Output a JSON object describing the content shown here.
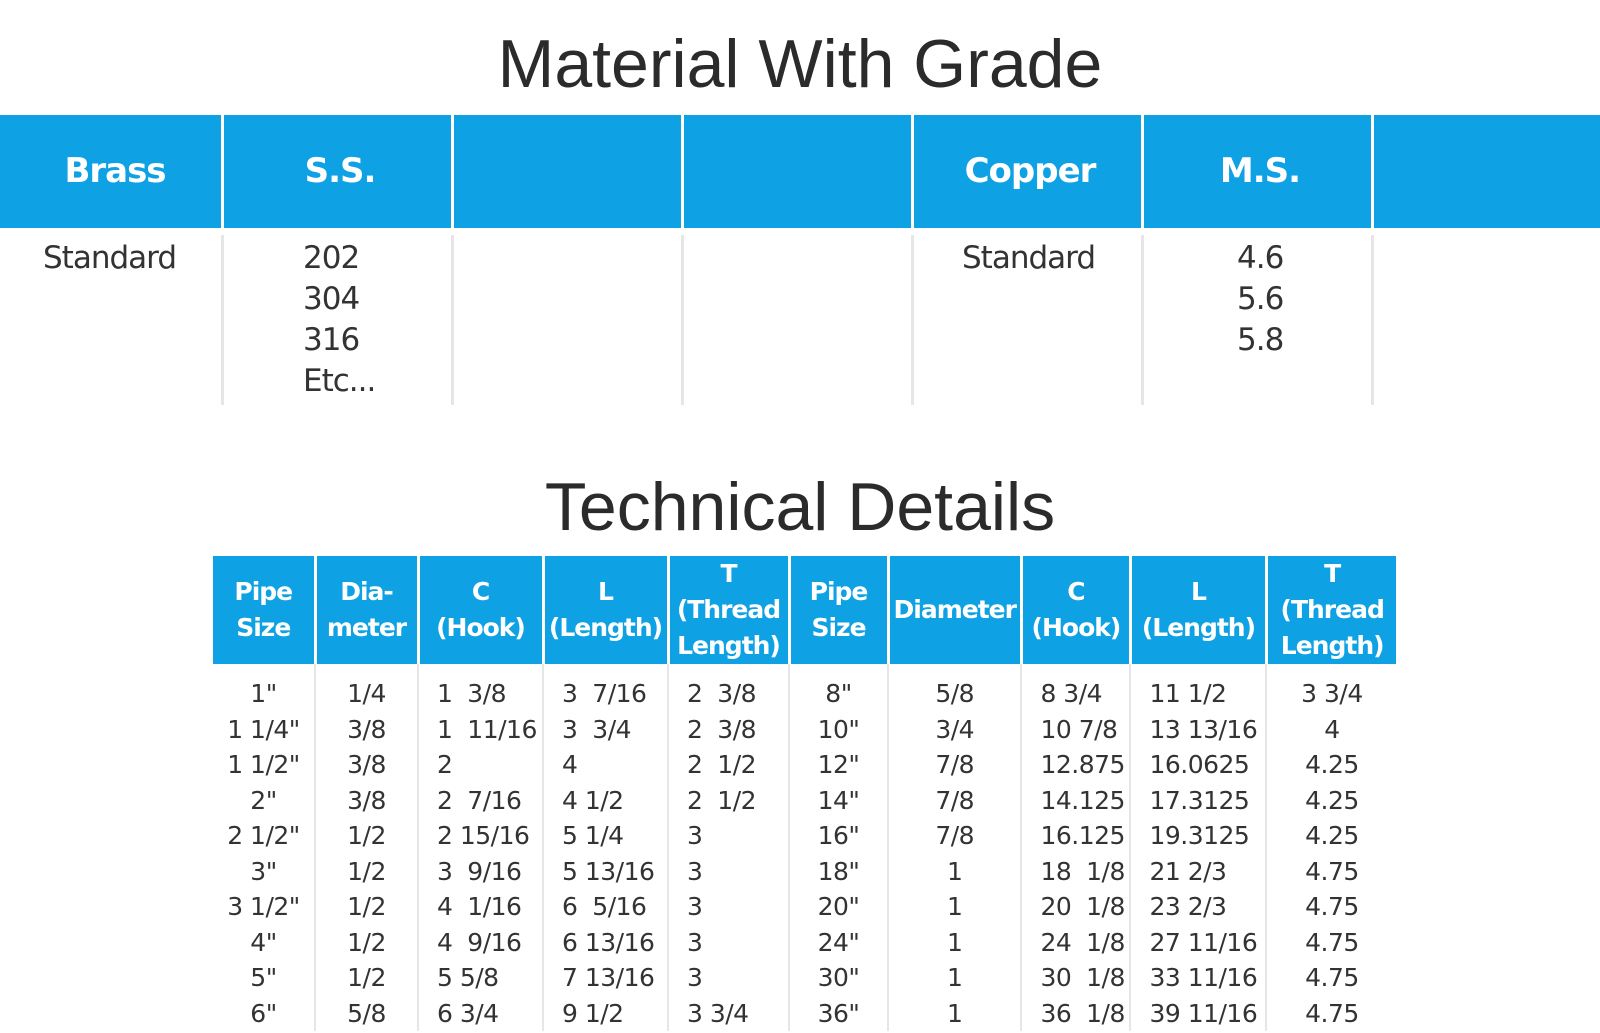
{
  "titles": {
    "material": "Material With Grade",
    "technical": "Technical Details"
  },
  "material_table": {
    "columns": [
      {
        "header": "Brass",
        "values": [
          "Standard"
        ]
      },
      {
        "header": "S.S.",
        "values": [
          "202",
          "304",
          "316",
          "Etc..."
        ]
      },
      {
        "header": "",
        "values": []
      },
      {
        "header": "",
        "values": []
      },
      {
        "header": "Copper",
        "values": [
          "Standard"
        ]
      },
      {
        "header": "M.S.",
        "values": [
          "4.6",
          "5.6",
          "5.8"
        ]
      },
      {
        "header": "",
        "values": []
      }
    ]
  },
  "technical_table": {
    "headers": [
      [
        "Pipe",
        "Size"
      ],
      [
        "Dia-",
        "meter"
      ],
      [
        "C",
        "(Hook)"
      ],
      [
        "L",
        "(Length)"
      ],
      [
        "T (Thread",
        "Length)"
      ],
      [
        "Pipe",
        "Size"
      ],
      [
        "Diameter"
      ],
      [
        "C",
        "(Hook)"
      ],
      [
        "L",
        "(Length)"
      ],
      [
        "T (Thread",
        "Length)"
      ]
    ],
    "rows": [
      [
        "1\"",
        "1/4",
        "1  3/8",
        "3  7/16",
        "2  3/8",
        "8\"",
        "5/8",
        "8 3/4",
        "11 1/2",
        "3 3/4"
      ],
      [
        "1 1/4\"",
        "3/8",
        "1  11/16",
        "3  3/4",
        "2  3/8",
        "10\"",
        "3/4",
        "10 7/8",
        "13 13/16",
        "4"
      ],
      [
        "1 1/2\"",
        "3/8",
        "2",
        "4",
        "2  1/2",
        "12\"",
        "7/8",
        "12.875",
        "16.0625",
        "4.25"
      ],
      [
        "2\"",
        "3/8",
        "2  7/16",
        "4 1/2",
        "2  1/2",
        "14\"",
        "7/8",
        "14.125",
        "17.3125",
        "4.25"
      ],
      [
        "2 1/2\"",
        "1/2",
        "2 15/16",
        "5 1/4",
        "3",
        "16\"",
        "7/8",
        "16.125",
        "19.3125",
        "4.25"
      ],
      [
        "3\"",
        "1/2",
        "3  9/16",
        "5 13/16",
        "3",
        "18\"",
        "1",
        "18  1/8",
        "21 2/3",
        "4.75"
      ],
      [
        "3 1/2\"",
        "1/2",
        "4  1/16",
        "6  5/16",
        "3",
        "20\"",
        "1",
        "20  1/8",
        "23 2/3",
        "4.75"
      ],
      [
        "4\"",
        "1/2",
        "4  9/16",
        "6 13/16",
        "3",
        "24\"",
        "1",
        "24  1/8",
        "27 11/16",
        "4.75"
      ],
      [
        "5\"",
        "1/2",
        "5 5/8",
        "7 13/16",
        "3",
        "30\"",
        "1",
        "30  1/8",
        "33 11/16",
        "4.75"
      ],
      [
        "6\"",
        "5/8",
        "6 3/4",
        "9 1/2",
        "3 3/4",
        "36\"",
        "1",
        "36  1/8",
        "39 11/16",
        "4.75"
      ]
    ]
  },
  "colors": {
    "header_bg": "#0ea1e4",
    "header_text": "#ffffff",
    "body_text": "#333333",
    "title_text": "#2b2b2b"
  }
}
